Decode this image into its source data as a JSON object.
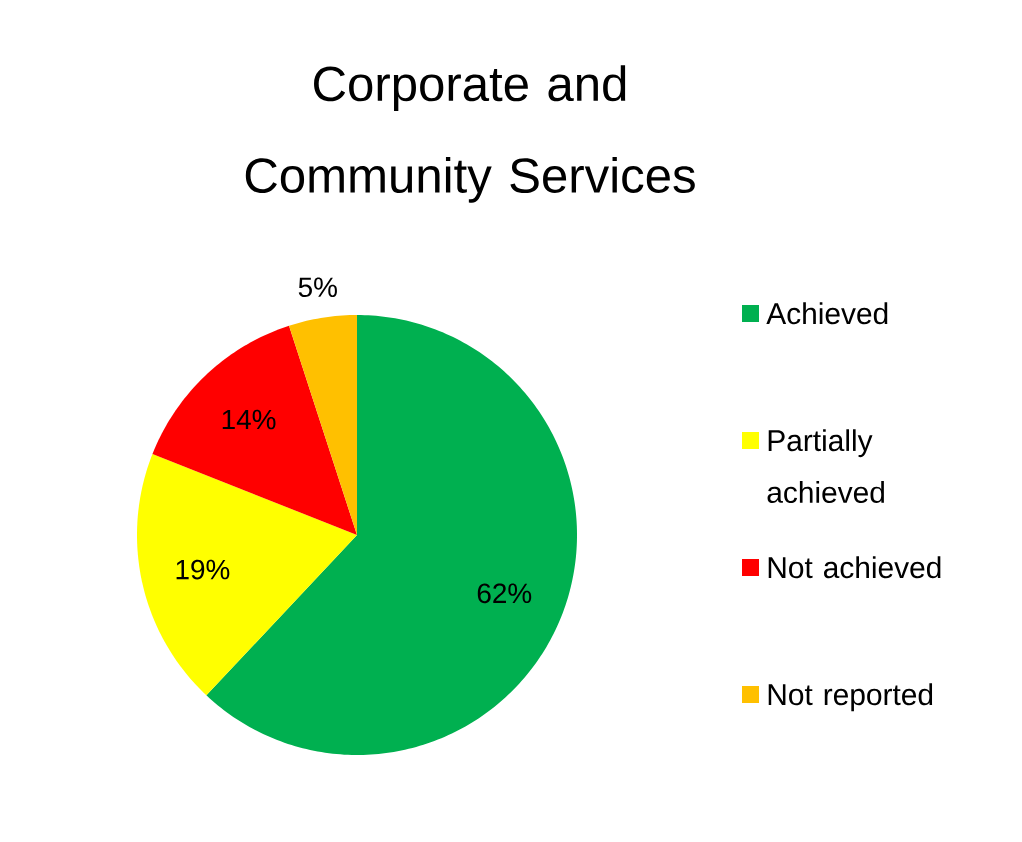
{
  "chart_data": {
    "type": "pie",
    "title": "Corporate and Community Services",
    "categories": [
      "Achieved",
      "Partially achieved",
      "Not achieved",
      "Not reported"
    ],
    "values": [
      62,
      19,
      14,
      5
    ],
    "colors": [
      "#00b050",
      "#ffff00",
      "#ff0000",
      "#ffc000"
    ],
    "value_labels": [
      "62%",
      "19%",
      "14%",
      "5%"
    ],
    "legend": "right"
  }
}
